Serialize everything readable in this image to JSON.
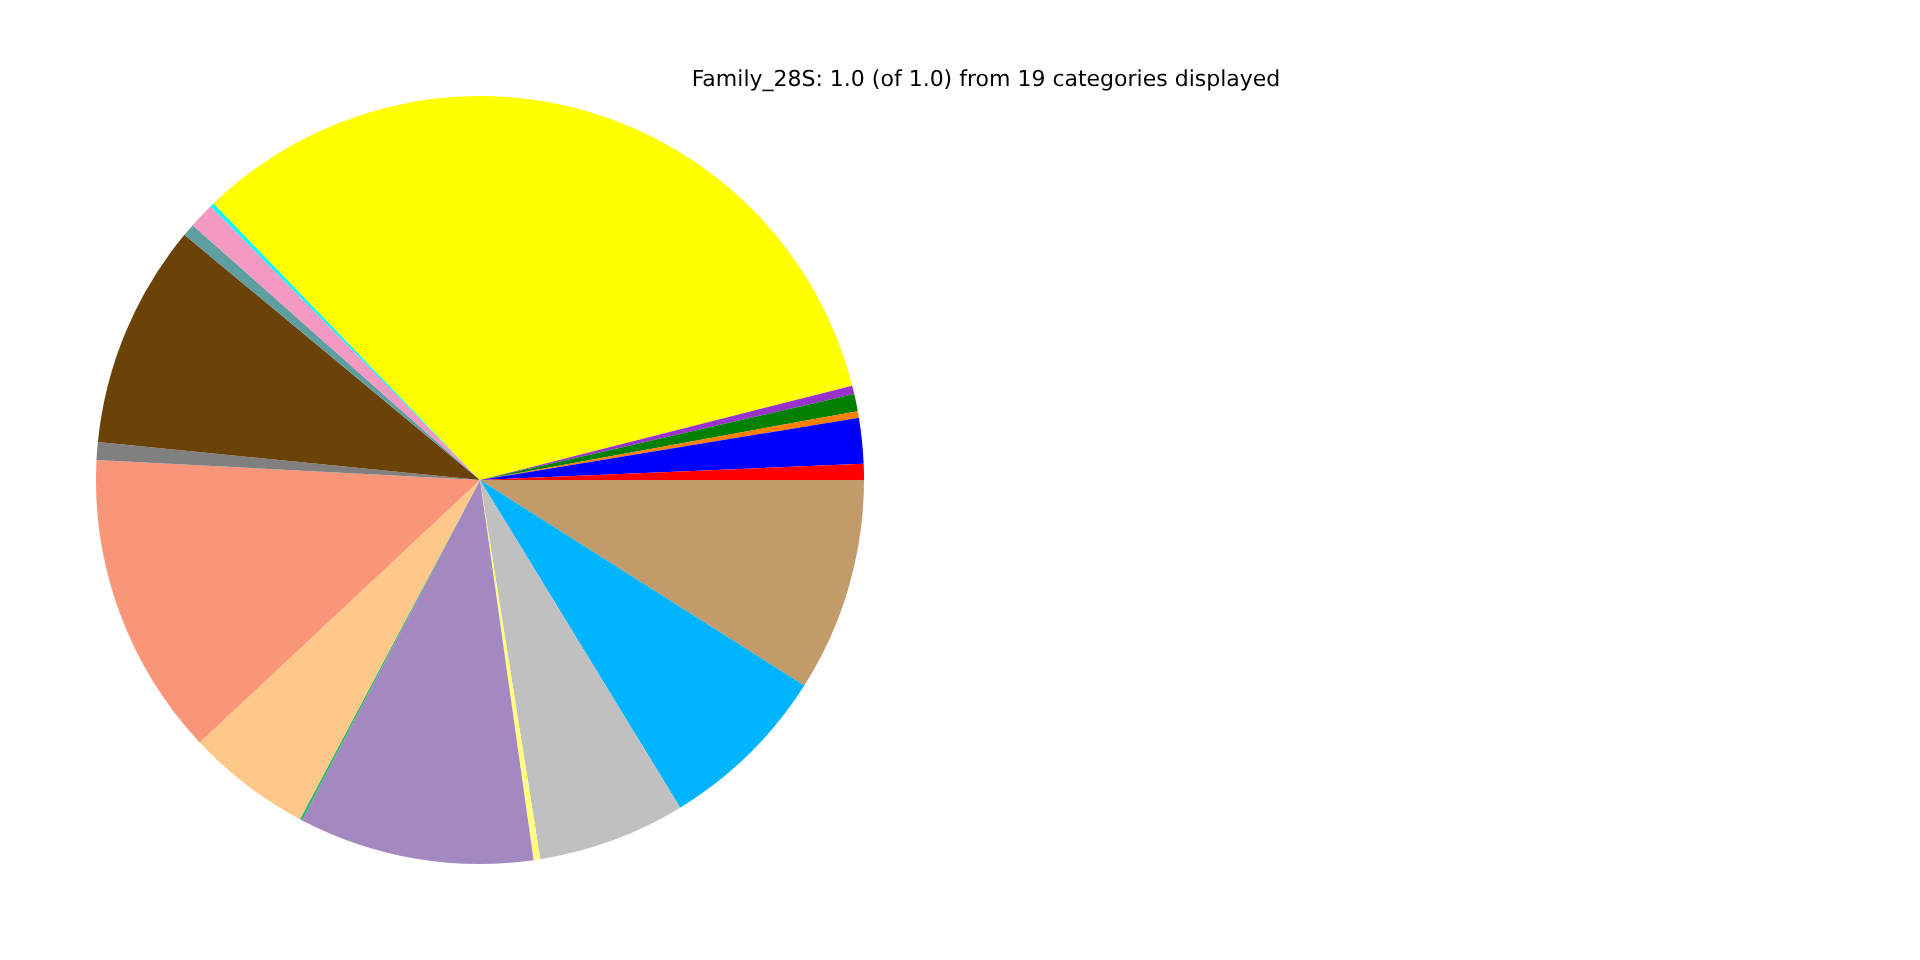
{
  "chart_data": {
    "type": "pie",
    "title": "Family_28S: 1.0 (of 1.0) from 19 categories displayed",
    "categories": [
      null,
      null,
      null,
      null,
      null,
      null,
      null,
      null,
      null,
      null,
      null,
      null,
      null,
      null,
      null,
      null,
      null,
      null,
      null
    ],
    "values": [
      0.67,
      1.92,
      0.28,
      0.72,
      0.36,
      33.25,
      0.17,
      1.08,
      0.53,
      9.44,
      0.75,
      12.81,
      5.25,
      0.11,
      9.89,
      0.28,
      6.22,
      7.28,
      8.99
    ],
    "colors": [
      "#ff0000",
      "#0000ff",
      "#ff7f00",
      "#008000",
      "#9932cc",
      "#ffff00",
      "#00ffff",
      "#f49ac2",
      "#5f9ea0",
      "#6b4309",
      "#808080",
      "#f9967a",
      "#fdc88a",
      "#3cb371",
      "#a389c0",
      "#ffff80",
      "#c0c0c0",
      "#00b4ff",
      "#c39b6b"
    ],
    "legend": false
  }
}
